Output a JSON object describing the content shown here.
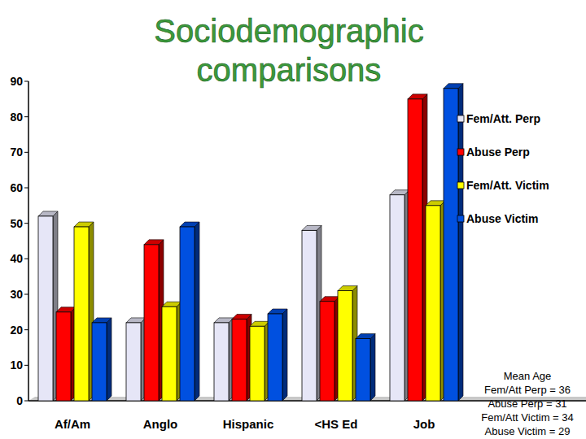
{
  "chart_data": {
    "type": "bar",
    "title": "Sociodemographic comparisons",
    "categories": [
      "Af/Am",
      "Anglo",
      "Hispanic",
      "<HS Ed",
      "Job"
    ],
    "series": [
      {
        "name": "Fem/Att. Perp",
        "color": "#e6e6f7",
        "values": [
          52,
          22,
          22,
          48,
          58
        ]
      },
      {
        "name": "Abuse Perp",
        "color": "#ff0000",
        "values": [
          25,
          44,
          23,
          28,
          85
        ]
      },
      {
        "name": "Fem/Att. Victim",
        "color": "#ffff00",
        "values": [
          49,
          26.5,
          21,
          31,
          55
        ]
      },
      {
        "name": "Abuse Victim",
        "color": "#0050e0",
        "values": [
          22,
          49,
          24.5,
          17.5,
          88
        ]
      }
    ],
    "ylim": [
      0,
      90
    ],
    "yticks": [
      0,
      10,
      20,
      30,
      40,
      50,
      60,
      70,
      80,
      90
    ],
    "grid": false,
    "legend": "top-right",
    "annotations": [
      "Mean Age",
      "Fem/Att Perp = 36",
      "Abuse Perp = 31",
      "Fem/Att Victim = 34",
      "Abuse Victim = 29"
    ]
  }
}
